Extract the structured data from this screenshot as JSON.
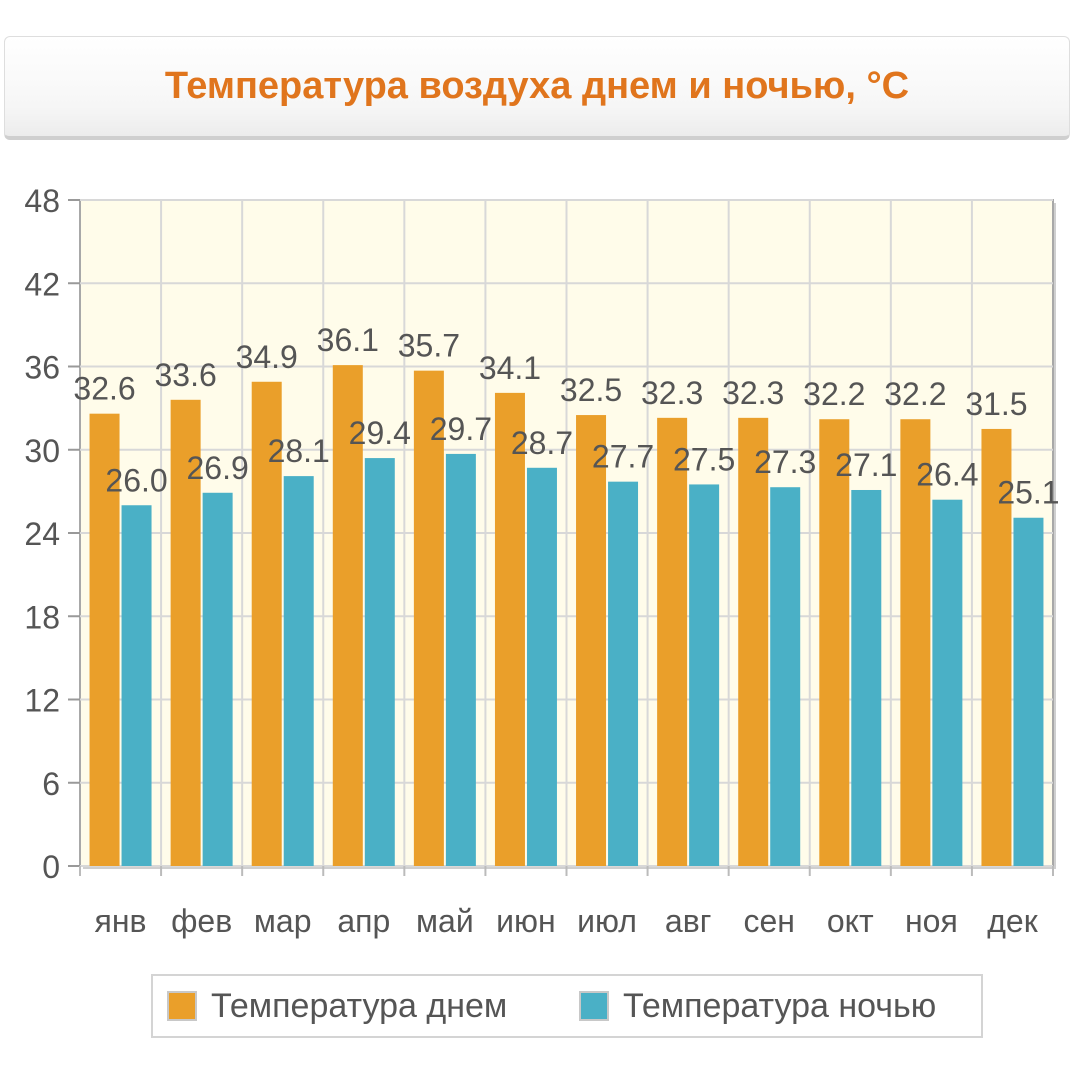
{
  "title": "Температура воздуха днем и ночью, °C",
  "colors": {
    "title": "#e0751d",
    "day": "#ea9f2a",
    "night": "#4ab0c6",
    "plot_bg": "#fffcea",
    "grid": "#d8d8d8",
    "text": "#555555"
  },
  "legend": {
    "day_label": "Температура днем",
    "night_label": "Температура ночью"
  },
  "chart_data": {
    "type": "bar",
    "title": "Температура воздуха днем и ночью, °C",
    "categories": [
      "янв",
      "фев",
      "мар",
      "апр",
      "май",
      "июн",
      "июл",
      "авг",
      "сен",
      "окт",
      "ноя",
      "дек"
    ],
    "series": [
      {
        "name": "Температура днем",
        "values": [
          32.6,
          33.6,
          34.9,
          36.1,
          35.7,
          34.1,
          32.5,
          32.3,
          32.3,
          32.2,
          32.2,
          31.5
        ]
      },
      {
        "name": "Температура ночью",
        "values": [
          26.0,
          26.9,
          28.1,
          29.4,
          29.7,
          28.7,
          27.7,
          27.5,
          27.3,
          27.1,
          26.4,
          25.1
        ]
      }
    ],
    "data_labels": {
      "day": [
        "32.6",
        "33.6",
        "34.9",
        "36.1",
        "35.7",
        "34.1",
        "32.5",
        "32.3",
        "32.3",
        "32.2",
        "32.2",
        "31.5"
      ],
      "night": [
        "26.0",
        "26.9",
        "28.1",
        "29.4",
        "29.7",
        "28.7",
        "27.7",
        "27.5",
        "27.3",
        "27.1",
        "26.4",
        "25.1"
      ]
    },
    "yticks": [
      "0",
      "6",
      "12",
      "18",
      "24",
      "30",
      "36",
      "42",
      "48"
    ],
    "ylim": [
      0,
      48
    ],
    "grid": true,
    "legend_position": "bottom"
  }
}
